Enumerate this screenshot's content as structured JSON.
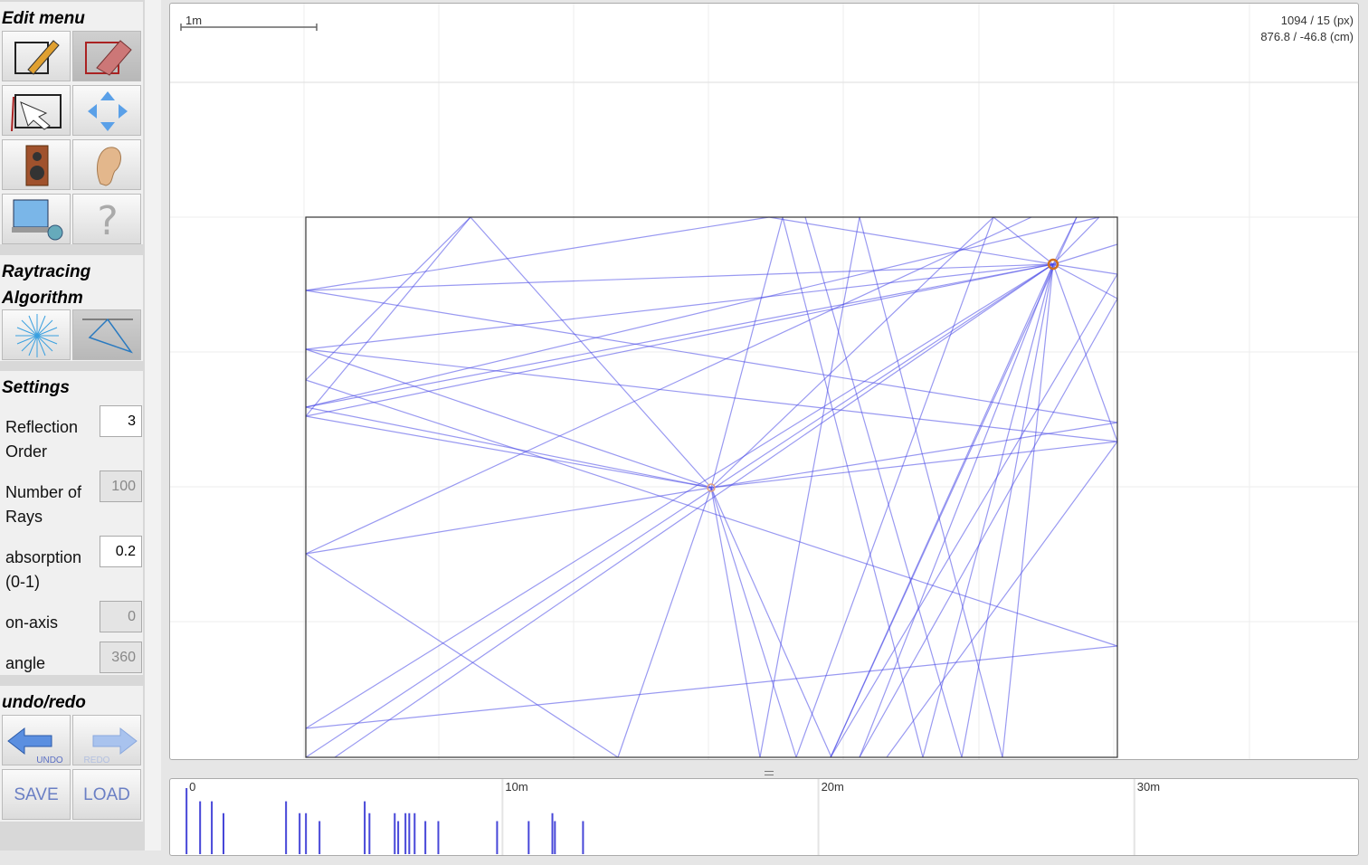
{
  "sidebar": {
    "edit_menu": {
      "title": "Edit menu"
    },
    "raytracing": {
      "title": "Raytracing Algorithm"
    },
    "settings": {
      "title": "Settings",
      "fields": [
        {
          "label": "Reflection Order",
          "value": "3"
        },
        {
          "label": "Number of Rays",
          "value": "100"
        },
        {
          "label": "absorption (0-1)",
          "value": "0.2"
        },
        {
          "label": "on-axis",
          "value": "0"
        },
        {
          "label": "angle",
          "value": "360"
        }
      ]
    },
    "undo_redo": {
      "title": "undo/redo",
      "undo": "UNDO",
      "redo": "REDO",
      "save": "SAVE",
      "load": "LOAD"
    }
  },
  "canvas": {
    "scale_label": "1m",
    "cursor_px": "1094 / 15 (px)",
    "cursor_cm": "876.8 / -46.8 (cm)"
  },
  "impulse_response": {
    "xlim": [
      -0.52,
      37.08
    ],
    "xticks": [
      {
        "value": 0,
        "label": "0"
      },
      {
        "value": 10,
        "label": "10m"
      },
      {
        "value": 20,
        "label": "20m"
      },
      {
        "value": 30,
        "label": "30m"
      }
    ],
    "arrivals": [
      0,
      0.43,
      0.8,
      1.17,
      3.15,
      3.58,
      3.78,
      4.21,
      5.64,
      5.79,
      6.59,
      6.7,
      6.93,
      7.05,
      7.22,
      7.56,
      7.97,
      9.83,
      10.83,
      11.58,
      11.66,
      12.55
    ],
    "amplitudes": [
      1.0,
      0.8,
      0.8,
      0.62,
      0.8,
      0.62,
      0.62,
      0.5,
      0.8,
      0.62,
      0.62,
      0.5,
      0.62,
      0.62,
      0.62,
      0.5,
      0.5,
      0.5,
      0.5,
      0.62,
      0.5,
      0.5
    ]
  }
}
